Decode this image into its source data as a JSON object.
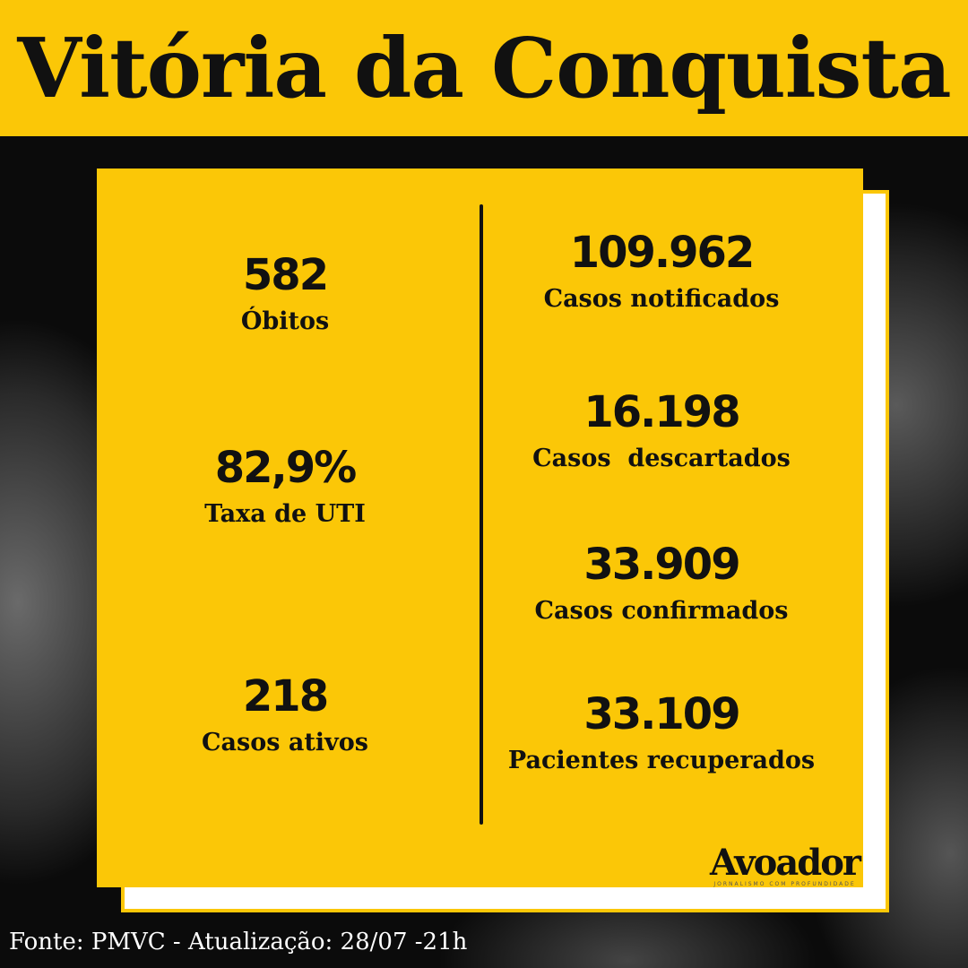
{
  "header": {
    "title": "Vitória da Conquista"
  },
  "left": [
    {
      "value": "582",
      "label": "Óbitos"
    },
    {
      "value": "82,9%",
      "label": "Taxa de UTI"
    },
    {
      "value": "218",
      "label": "Casos ativos"
    }
  ],
  "right": [
    {
      "value": "109.962",
      "label": "Casos notificados"
    },
    {
      "value": "16.198",
      "label": "Casos  descartados"
    },
    {
      "value": "33.909",
      "label": "Casos confirmados"
    },
    {
      "value": "33.109",
      "label": "Pacientes recuperados"
    }
  ],
  "logo": {
    "name": "Avoador",
    "tagline": "JORNALISMO COM PROFUNDIDADE"
  },
  "footer": {
    "text": "Fonte: PMVC - Atualização: 28/07 -21h"
  },
  "colors": {
    "accent": "#fbc707",
    "background": "#0b0b0b"
  }
}
